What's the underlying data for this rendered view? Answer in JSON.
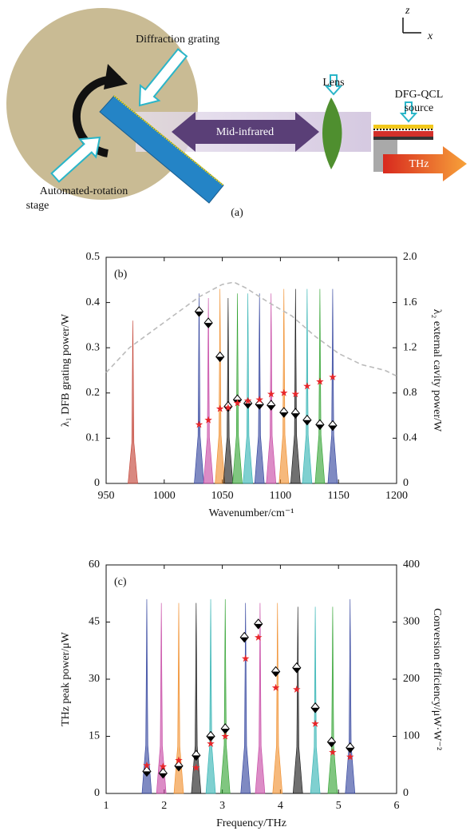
{
  "diagram": {
    "grating_label": "Diffraction grating",
    "lens_label": "Lens",
    "source_label": [
      "DFG-QCL",
      "source"
    ],
    "beam_label": "Mid-infrared",
    "thz_label": "THz",
    "stage_label": [
      "Automated-rotation",
      "stage"
    ],
    "panel_label": "(a)",
    "axis_z": "z",
    "axis_x": "x"
  },
  "chart_data": [
    {
      "type": "spectrum",
      "panel_label": "(b)",
      "x_label": "Wavenumber/cm⁻¹",
      "y_label": "λ₁ DFB grating power/W",
      "y2_label": "λ₂ external cavity power/W",
      "xlim": [
        950,
        1200
      ],
      "xticks": [
        950,
        1000,
        1050,
        1100,
        1150,
        1200
      ],
      "ylim": [
        0,
        0.5
      ],
      "yticks": [
        0,
        0.1,
        0.2,
        0.3,
        0.4,
        0.5
      ],
      "y2lim": [
        0,
        2
      ],
      "y2ticks": [
        0,
        0.4,
        0.8,
        1.2,
        1.6,
        {
          "value": 2,
          "label": "2.0"
        }
      ],
      "peaks": {
        "x": [
          973,
          1030,
          1038,
          1048,
          1055,
          1063,
          1072,
          1082,
          1092,
          1103,
          1113,
          1123,
          1134,
          1145
        ],
        "values": [
          0.36,
          0.42,
          0.41,
          0.43,
          0.41,
          0.42,
          0.42,
          0.42,
          0.42,
          0.43,
          0.43,
          0.43,
          0.43,
          0.43
        ],
        "colors": [
          "#c0392b",
          "#2a3c9a",
          "#c43fa0",
          "#f08a24",
          "#111111",
          "#2ca02c",
          "#2ab0b0",
          "#2a3c9a",
          "#c43fa0",
          "#f08a24",
          "#111111",
          "#2ab0b0",
          "#2ca02c",
          "#2a3c9a"
        ]
      },
      "series": [
        {
          "marker": "dashed",
          "color": "#bbbbbb",
          "axis": "y2",
          "x": [
            950,
            970,
            990,
            1010,
            1030,
            1050,
            1060,
            1070,
            1090,
            1110,
            1130,
            1150,
            1170,
            1190,
            1200
          ],
          "values": [
            0.98,
            1.2,
            1.35,
            1.5,
            1.65,
            1.76,
            1.78,
            1.73,
            1.6,
            1.48,
            1.3,
            1.15,
            1.05,
            1.0,
            0.95
          ]
        },
        {
          "marker": "diamond",
          "color": "#000000",
          "x": [
            1030,
            1038,
            1048,
            1055,
            1063,
            1072,
            1082,
            1092,
            1103,
            1113,
            1123,
            1134,
            1145
          ],
          "values": [
            0.38,
            0.355,
            0.28,
            0.17,
            0.185,
            0.177,
            0.175,
            0.173,
            0.157,
            0.155,
            0.14,
            0.13,
            0.128
          ]
        },
        {
          "marker": "star",
          "color": "#e8262a",
          "axis": "y2",
          "x": [
            1030,
            1038,
            1048,
            1055,
            1063,
            1072,
            1082,
            1092,
            1103,
            1113,
            1123,
            1134,
            1145
          ],
          "values": [
            0.52,
            0.56,
            0.66,
            0.67,
            0.71,
            0.73,
            0.74,
            0.79,
            0.8,
            0.79,
            0.86,
            0.9,
            0.94
          ]
        }
      ]
    },
    {
      "type": "spectrum",
      "panel_label": "(c)",
      "x_label": "Frequency/THz",
      "y_label": "THz peak power/μW",
      "y2_label": "Conversion efficiency/μW·W⁻²",
      "xlim": [
        1,
        6
      ],
      "xticks": [
        1,
        2,
        3,
        4,
        5,
        6
      ],
      "ylim": [
        0,
        60
      ],
      "yticks": [
        0,
        15,
        30,
        45,
        60
      ],
      "y2lim": [
        0,
        400
      ],
      "y2ticks": [
        0,
        100,
        200,
        300,
        400
      ],
      "peaks": {
        "x": [
          1.7,
          1.95,
          2.25,
          2.55,
          2.8,
          3.05,
          3.4,
          3.65,
          3.95,
          4.3,
          4.6,
          4.9,
          5.2
        ],
        "values": [
          51,
          50,
          50,
          50,
          51,
          51,
          50,
          50,
          50,
          49,
          49,
          49,
          51
        ],
        "colors": [
          "#2a3c9a",
          "#c43fa0",
          "#f08a24",
          "#111111",
          "#2ab0b0",
          "#2ca02c",
          "#2a3c9a",
          "#c43fa0",
          "#f08a24",
          "#111111",
          "#2ab0b0",
          "#2ca02c",
          "#2a3c9a"
        ]
      },
      "series": [
        {
          "marker": "diamond",
          "color": "#000000",
          "x": [
            1.7,
            1.98,
            2.25,
            2.55,
            2.8,
            3.05,
            3.38,
            3.62,
            3.92,
            4.28,
            4.6,
            4.88,
            5.2
          ],
          "values": [
            5.8,
            5.3,
            7.2,
            10,
            15,
            17,
            41,
            44.5,
            32,
            33,
            22.5,
            13.5,
            12
          ]
        },
        {
          "marker": "star",
          "color": "#e8262a",
          "axis": "y2",
          "x": [
            1.7,
            1.98,
            2.25,
            2.55,
            2.8,
            3.05,
            3.4,
            3.62,
            3.92,
            4.28,
            4.6,
            4.9,
            5.2
          ],
          "values": [
            49,
            47,
            58,
            45,
            87,
            100,
            236,
            273,
            185,
            182,
            122,
            72,
            64
          ]
        }
      ]
    }
  ]
}
